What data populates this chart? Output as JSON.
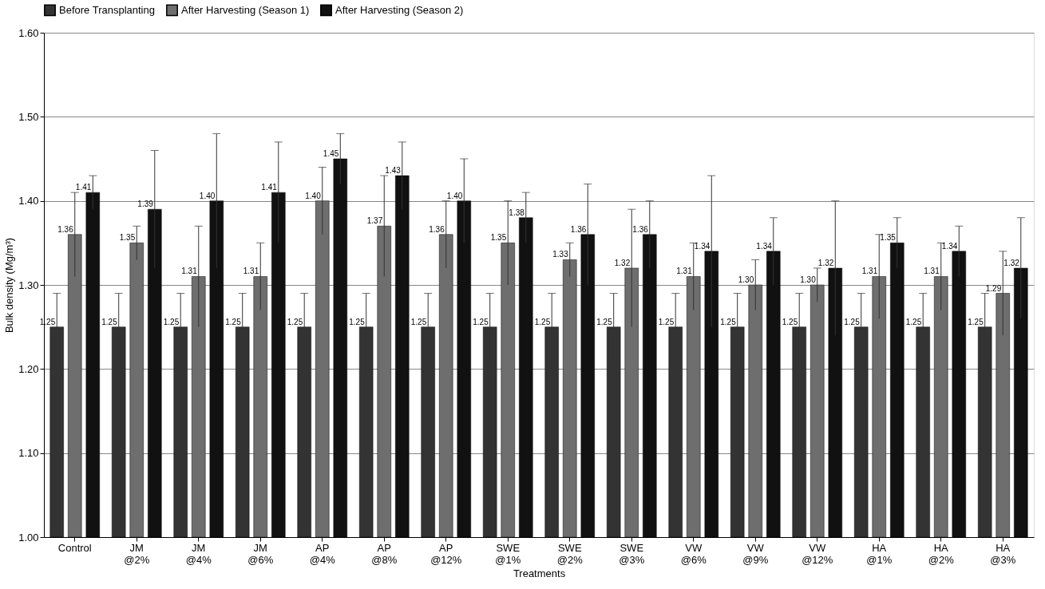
{
  "chart_data": {
    "type": "bar",
    "xlabel": "Treatments",
    "ylabel": "Bulk density (Mg/m³)",
    "categories": [
      "Control",
      "JM @2%",
      "JM @4%",
      "JM @6%",
      "AP @4%",
      "AP @8%",
      "AP @12%",
      "SWE @1%",
      "SWE @2%",
      "SWE @3%",
      "VW @6%",
      "VW @9%",
      "VW @12%",
      "HA @1%",
      "HA @2%",
      "HA @3%"
    ],
    "series": [
      {
        "name": "Before Transplanting",
        "color": "#333333",
        "values": [
          1.25,
          1.25,
          1.25,
          1.25,
          1.25,
          1.25,
          1.25,
          1.25,
          1.25,
          1.25,
          1.25,
          1.25,
          1.25,
          1.25,
          1.25,
          1.25
        ],
        "errors": [
          0.04,
          0.04,
          0.04,
          0.04,
          0.04,
          0.04,
          0.04,
          0.04,
          0.04,
          0.04,
          0.04,
          0.04,
          0.04,
          0.04,
          0.04,
          0.04
        ],
        "value_labels": [
          "1.25",
          "1.25",
          "1.25",
          "1.25",
          "1.25",
          "1.25",
          "1.25",
          "1.25",
          "1.25",
          "1.25",
          "1.25",
          "1.25",
          "1.25",
          "1.25",
          "1.25",
          "1.25"
        ]
      },
      {
        "name": "After Harvesting (Season 1)",
        "color": "#6e6e6e",
        "values": [
          1.36,
          1.35,
          1.31,
          1.31,
          1.4,
          1.37,
          1.36,
          1.35,
          1.33,
          1.32,
          1.31,
          1.3,
          1.3,
          1.31,
          1.31,
          1.29
        ],
        "errors": [
          0.05,
          0.02,
          0.06,
          0.04,
          0.04,
          0.06,
          0.04,
          0.05,
          0.02,
          0.07,
          0.04,
          0.03,
          0.02,
          0.05,
          0.04,
          0.05
        ],
        "value_labels": [
          "1.36",
          "1.35",
          "1.31",
          "1.31",
          "1.40",
          "1.37",
          "1.36",
          "1.35",
          "1.33",
          "1.32",
          "1.31",
          "1.30",
          "1.30",
          "1.31",
          "1.31",
          "1.29"
        ]
      },
      {
        "name": "After Harvesting (Season 2)",
        "color": "#111111",
        "values": [
          1.41,
          1.39,
          1.4,
          1.41,
          1.45,
          1.43,
          1.4,
          1.38,
          1.36,
          1.36,
          1.34,
          1.34,
          1.32,
          1.35,
          1.34,
          1.32
        ],
        "errors": [
          0.02,
          0.07,
          0.08,
          0.06,
          0.03,
          0.04,
          0.05,
          0.03,
          0.06,
          0.04,
          0.09,
          0.04,
          0.08,
          0.03,
          0.03,
          0.06
        ],
        "value_labels": [
          "1.41",
          "1.39",
          "1.40",
          "1.41",
          "1.45",
          "1.43",
          "1.40",
          "1.38",
          "1.36",
          "1.36",
          "1.34",
          "1.34",
          "1.32",
          "1.35",
          "1.34",
          "1.32"
        ]
      }
    ],
    "ylim": [
      1.0,
      1.6
    ],
    "yticks": [
      {
        "value": 1.0,
        "label": "1.00"
      },
      {
        "value": 1.1,
        "label": "1.10"
      },
      {
        "value": 1.2,
        "label": "1.20"
      },
      {
        "value": 1.3,
        "label": "1.30"
      },
      {
        "value": 1.4,
        "label": "1.40"
      },
      {
        "value": 1.5,
        "label": "1.50"
      },
      {
        "value": 1.6,
        "label": "1.60"
      }
    ],
    "grid": "y",
    "legend": "top"
  }
}
